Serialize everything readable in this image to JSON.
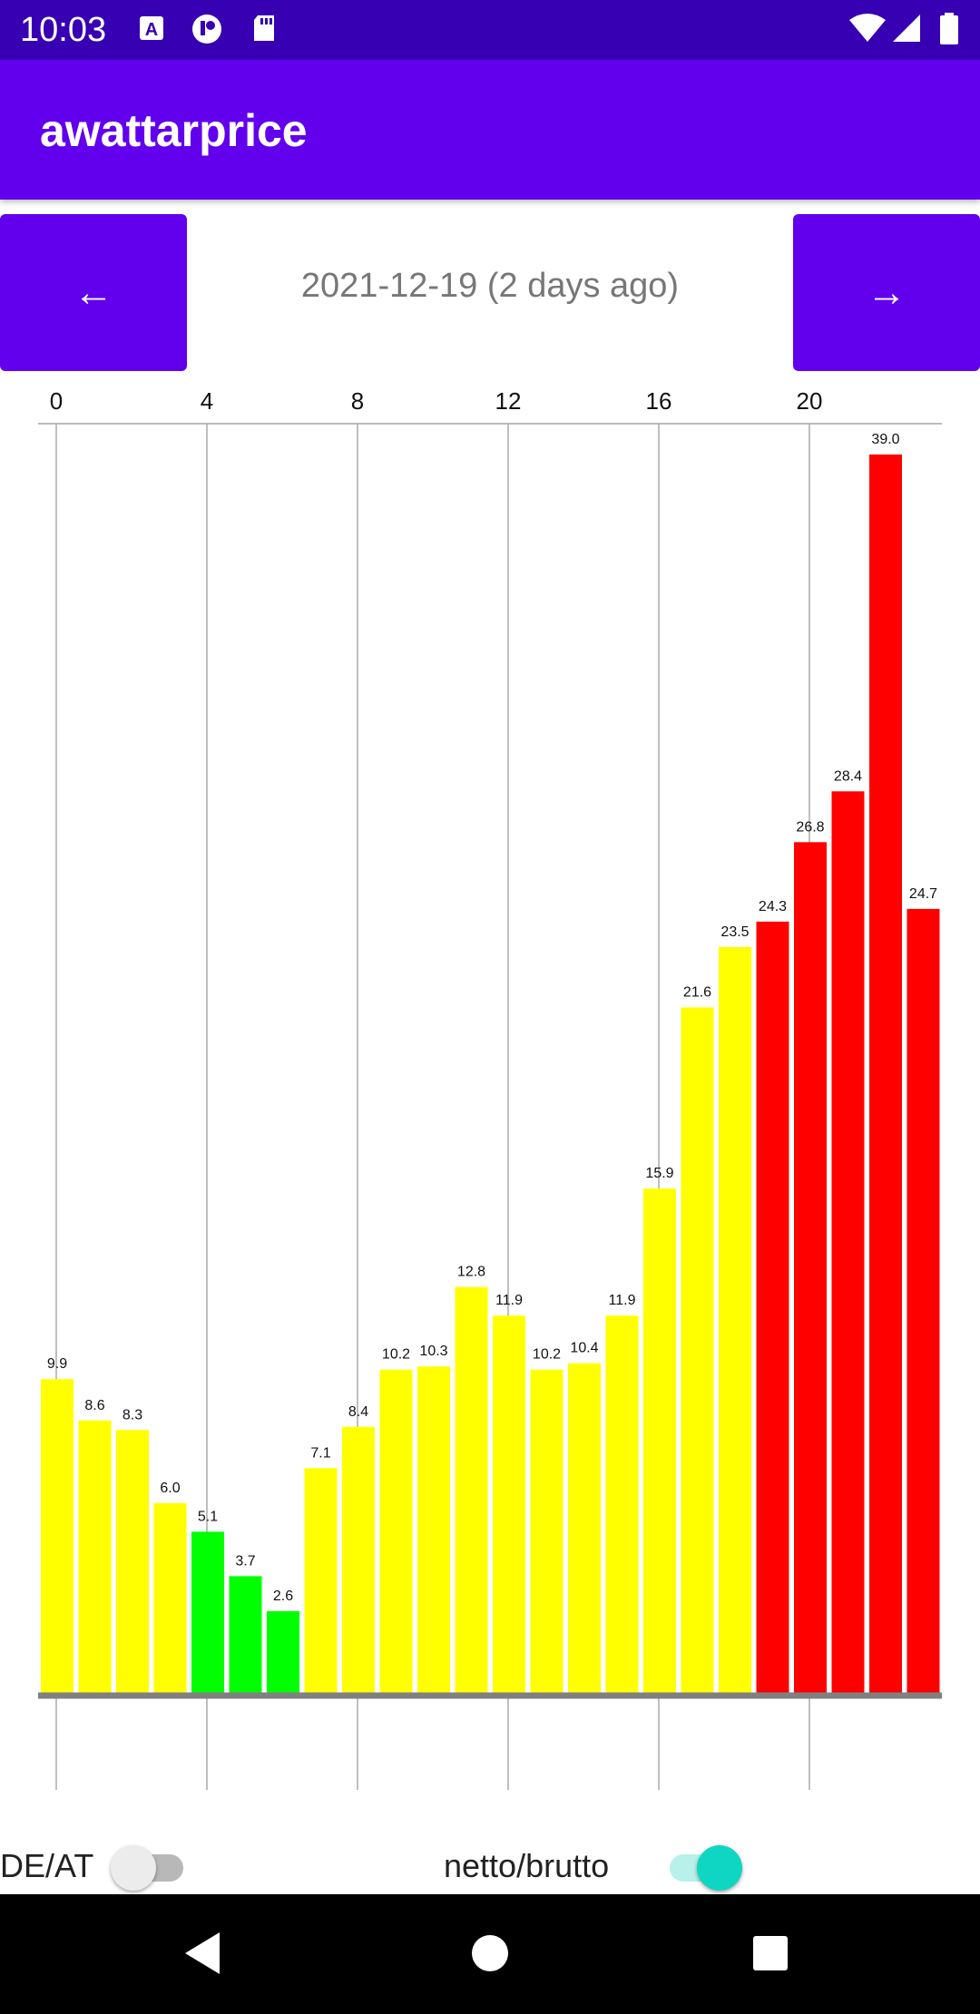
{
  "status_bar": {
    "time": "10:03",
    "left_icons": [
      "a11y-icon",
      "app-icon",
      "sd-card-icon"
    ],
    "right_icons": [
      "wifi-icon",
      "signal-icon",
      "battery-icon"
    ]
  },
  "app_bar": {
    "title": "awattarprice"
  },
  "navigation": {
    "prev_label": "←",
    "next_label": "→",
    "date_label": "2021-12-19 (2 days ago)"
  },
  "chart_data": {
    "type": "bar",
    "x": [
      0,
      1,
      2,
      3,
      4,
      5,
      6,
      7,
      8,
      9,
      10,
      11,
      12,
      13,
      14,
      15,
      16,
      17,
      18,
      19,
      20,
      21,
      22,
      23
    ],
    "values": [
      9.9,
      8.6,
      8.3,
      6.0,
      5.1,
      3.7,
      2.6,
      7.1,
      8.4,
      10.2,
      10.3,
      12.8,
      11.9,
      10.2,
      10.4,
      11.9,
      15.9,
      21.6,
      23.5,
      24.3,
      26.8,
      28.4,
      39.0,
      24.7
    ],
    "value_labels": [
      "9.9",
      "8.6",
      "8.3",
      "6.0",
      "5.1",
      "3.7",
      "2.6",
      "7.1",
      "8.4",
      "10.2",
      "10.3",
      "12.8",
      "11.9",
      "10.2",
      "10.4",
      "11.9",
      "15.9",
      "21.6",
      "23.5",
      "24.3",
      "26.8",
      "28.4",
      "39.0",
      "24.7"
    ],
    "x_ticks": [
      "0",
      "4",
      "8",
      "12",
      "16",
      "20"
    ],
    "colors": {
      "low": "#00ff00",
      "mid": "#ffff00",
      "high": "#ff0000"
    },
    "color_thresholds": {
      "low_below": 5.5,
      "high_from": 24.0
    },
    "ylim": [
      0,
      39.0
    ],
    "grid": "vertical"
  },
  "controls": {
    "region_label": "DE/AT",
    "region_switch_on": false,
    "tax_label": "netto/brutto",
    "tax_switch_on": true
  },
  "nav_bar": {
    "icons": [
      "back-icon",
      "home-icon",
      "recents-icon"
    ]
  }
}
